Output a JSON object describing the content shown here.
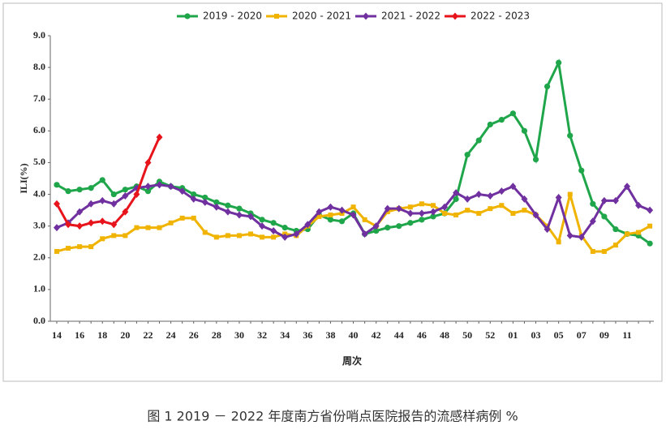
{
  "chart_data": {
    "type": "line",
    "y_label": "ILI(%)",
    "x_label": "周次",
    "caption": "图 1 2019 － 2022 年度南方省份哨点医院报告的流感样病例 %",
    "categories": [
      "14",
      null,
      "16",
      null,
      "18",
      null,
      "20",
      null,
      "22",
      null,
      "24",
      null,
      "26",
      null,
      "28",
      null,
      "30",
      null,
      "32",
      null,
      "34",
      null,
      "36",
      null,
      "38",
      null,
      "40",
      null,
      "42",
      null,
      "44",
      null,
      "46",
      null,
      "48",
      null,
      "50",
      null,
      "52",
      null,
      "01",
      null,
      "03",
      null,
      "05",
      null,
      "07",
      null,
      "09",
      null,
      "11",
      null,
      null
    ],
    "ylim": [
      0,
      9
    ],
    "yticks": [
      {
        "value": 0,
        "label": "0.0"
      },
      {
        "value": 1,
        "label": "1.0"
      },
      {
        "value": 2,
        "label": "2.0"
      },
      {
        "value": 3,
        "label": "3.0"
      },
      {
        "value": 4,
        "label": "4.0"
      },
      {
        "value": 5,
        "label": "5.0"
      },
      {
        "value": 6,
        "label": "6.0"
      },
      {
        "value": 7,
        "label": "7.0"
      },
      {
        "value": 8,
        "label": "8.0"
      },
      {
        "value": 9,
        "label": "9.0"
      }
    ],
    "legend": "top",
    "series": [
      {
        "name": "2019 - 2020",
        "color": "#1fa64a",
        "marker": "circle",
        "values": [
          4.3,
          4.1,
          4.15,
          4.2,
          4.45,
          4.0,
          4.15,
          4.25,
          4.1,
          4.4,
          4.25,
          4.2,
          4.0,
          3.9,
          3.75,
          3.65,
          3.55,
          3.4,
          3.2,
          3.1,
          2.95,
          2.85,
          2.9,
          3.35,
          3.2,
          3.15,
          3.4,
          2.75,
          2.85,
          2.95,
          3.0,
          3.1,
          3.2,
          3.3,
          3.4,
          3.85,
          5.25,
          5.7,
          6.2,
          6.35,
          6.55,
          6.0,
          5.1,
          7.4,
          8.15,
          5.85,
          4.75,
          3.7,
          3.3,
          2.9,
          2.75,
          2.7,
          2.45
        ]
      },
      {
        "name": "2020 - 2021",
        "color": "#f0b400",
        "marker": "square",
        "values": [
          2.2,
          2.3,
          2.35,
          2.35,
          2.6,
          2.7,
          2.7,
          2.95,
          2.95,
          2.95,
          3.1,
          3.25,
          3.25,
          2.8,
          2.65,
          2.7,
          2.7,
          2.75,
          2.65,
          2.65,
          2.75,
          2.7,
          3.0,
          3.3,
          3.35,
          3.4,
          3.6,
          3.2,
          3.0,
          3.45,
          3.55,
          3.6,
          3.7,
          3.65,
          3.4,
          3.35,
          3.5,
          3.4,
          3.55,
          3.65,
          3.4,
          3.5,
          3.35,
          3.0,
          2.5,
          4.0,
          2.7,
          2.2,
          2.2,
          2.4,
          2.75,
          2.8,
          3.0
        ]
      },
      {
        "name": "2021 - 2022",
        "color": "#7030a0",
        "marker": "diamond",
        "values": [
          2.95,
          3.1,
          3.45,
          3.7,
          3.8,
          3.7,
          3.95,
          4.2,
          4.25,
          4.3,
          4.25,
          4.1,
          3.85,
          3.75,
          3.6,
          3.45,
          3.35,
          3.3,
          3.0,
          2.85,
          2.65,
          2.75,
          3.05,
          3.45,
          3.6,
          3.5,
          3.35,
          2.75,
          3.0,
          3.55,
          3.55,
          3.4,
          3.4,
          3.45,
          3.6,
          4.05,
          3.85,
          4.0,
          3.95,
          4.1,
          4.25,
          3.85,
          3.35,
          2.9,
          3.9,
          2.7,
          2.65,
          3.15,
          3.8,
          3.8,
          4.25,
          3.65,
          3.5
        ]
      },
      {
        "name": "2022 - 2023",
        "color": "#e8141b",
        "marker": "diamond",
        "values": [
          3.7,
          3.05,
          3.0,
          3.1,
          3.15,
          3.05,
          3.45,
          4.0,
          5.0,
          5.8,
          null,
          null,
          null,
          null,
          null,
          null,
          null,
          null,
          null,
          null,
          null,
          null,
          null,
          null,
          null,
          null,
          null,
          null,
          null,
          null,
          null,
          null,
          null,
          null,
          null,
          null,
          null,
          null,
          null,
          null,
          null,
          null,
          null,
          null,
          null,
          null,
          null,
          null,
          null,
          null,
          null,
          null,
          null
        ]
      }
    ]
  }
}
